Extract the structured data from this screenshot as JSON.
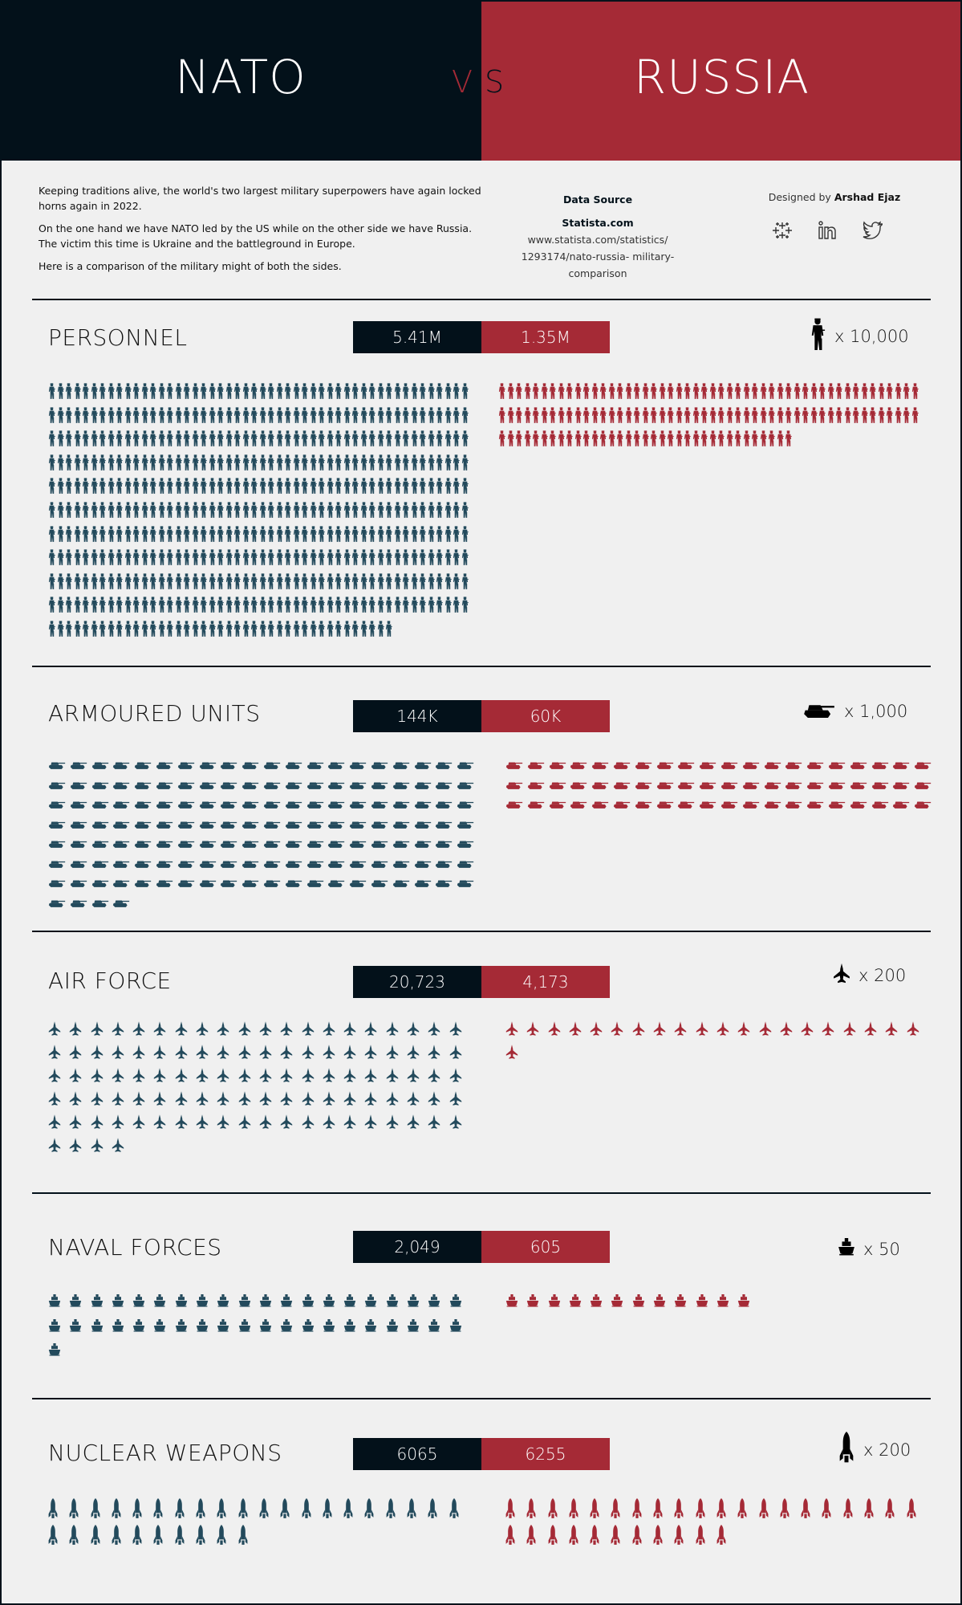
{
  "header": {
    "left_title": "NATO",
    "right_title": "RUSSIA",
    "vs_v": "V",
    "vs_s": "S"
  },
  "intro": [
    "Keeping traditions alive, the world's two largest military superpowers have again locked horns again in 2022.",
    "On the one hand we have NATO led by the US while on the other side we have Russia. The victim this time is Ukraine and the battleground in Europe.",
    "Here is a comparison of the military might of both the sides."
  ],
  "source": {
    "heading": "Data Source",
    "name": "Statista.com",
    "url": "www.statista.com/statistics/ 1293174/nato-russia- military-comparison"
  },
  "designer": {
    "prefix": "Designed by",
    "name": "Arshad Ejaz",
    "icons": [
      "tableau-icon",
      "linkedin-icon",
      "twitter-icon"
    ]
  },
  "colors": {
    "nato": "#03111a",
    "russia": "#a52a36",
    "nato_icon": "#234a5c",
    "background": "#f0f0f0"
  },
  "sections": [
    {
      "title": "PERSONNEL",
      "nato_value": "5.41M",
      "russia_value": "1.35M",
      "unit_label": "x 10,000",
      "icon": "soldier",
      "nato_count": 541,
      "russia_count": 135
    },
    {
      "title": "ARMOURED UNITS",
      "nato_value": "144K",
      "russia_value": "60K",
      "unit_label": "x 1,000",
      "icon": "tank",
      "nato_count": 144,
      "russia_count": 60
    },
    {
      "title": "AIR FORCE",
      "nato_value": "20,723",
      "russia_value": "4,173",
      "unit_label": "x 200",
      "icon": "jet",
      "nato_count": 104,
      "russia_count": 21
    },
    {
      "title": "NAVAL FORCES",
      "nato_value": "2,049",
      "russia_value": "605",
      "unit_label": "x 50",
      "icon": "ship",
      "nato_count": 41,
      "russia_count": 12
    },
    {
      "title": "NUCLEAR WEAPONS",
      "nato_value": "6065",
      "russia_value": "6255",
      "unit_label": "x 200",
      "icon": "missile",
      "nato_count": 30,
      "russia_count": 31
    }
  ]
}
